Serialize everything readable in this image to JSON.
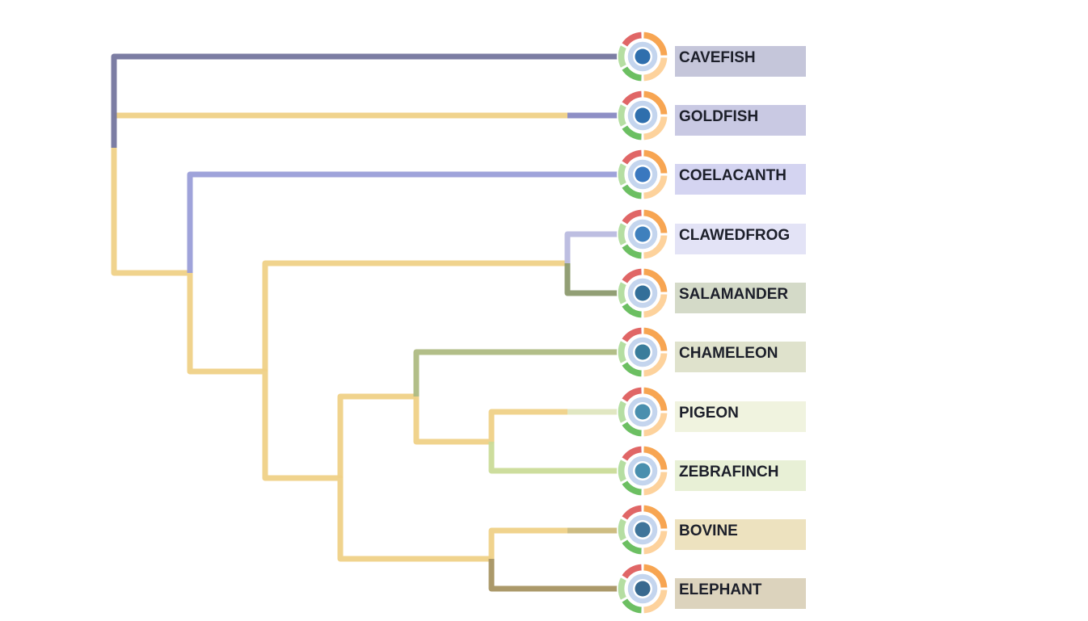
{
  "tree": {
    "leaves": [
      {
        "name": "CAVEFISH",
        "label_bg": "#c5c6da",
        "branch_color": "#75769e",
        "node_color": "#2f6fad"
      },
      {
        "name": "GOLDFISH",
        "label_bg": "#c9c9e3",
        "branch_color": "#8889c2",
        "node_color": "#2f6fad"
      },
      {
        "name": "COELACANTH",
        "label_bg": "#d4d4f1",
        "branch_color": "#9a9ed8",
        "node_color": "#3a78bf"
      },
      {
        "name": "CLAWEDFROG",
        "label_bg": "#e3e3f6",
        "branch_color": "#b9badf",
        "node_color": "#3f80bd"
      },
      {
        "name": "SALAMANDER",
        "label_bg": "#d4dac8",
        "branch_color": "#8c9a6e",
        "node_color": "#336f99"
      },
      {
        "name": "CHAMELEON",
        "label_bg": "#dfe2cc",
        "branch_color": "#aebb82",
        "node_color": "#3a7d9b"
      },
      {
        "name": "PIGEON",
        "label_bg": "#f0f3df",
        "branch_color": "#dfe6bf",
        "node_color": "#4a8fae"
      },
      {
        "name": "ZEBRAFINCH",
        "label_bg": "#e8f0d6",
        "branch_color": "#cadb98",
        "node_color": "#4a8fae"
      },
      {
        "name": "BOVINE",
        "label_bg": "#ede2bf",
        "branch_color": "#cbb97b",
        "node_color": "#40759a"
      },
      {
        "name": "ELEPHANT",
        "label_bg": "#dcd3bd",
        "branch_color": "#a79462",
        "node_color": "#38698f"
      }
    ],
    "internal_branch_color": "#efd187",
    "ring_colors": {
      "red": "#e06666",
      "orange": "#f7a552",
      "peach": "#fdd29c",
      "green": "#6cbf62",
      "light_green": "#b5dea2",
      "inner_blue": "#c4d5ee",
      "white": "#ffffff"
    }
  }
}
